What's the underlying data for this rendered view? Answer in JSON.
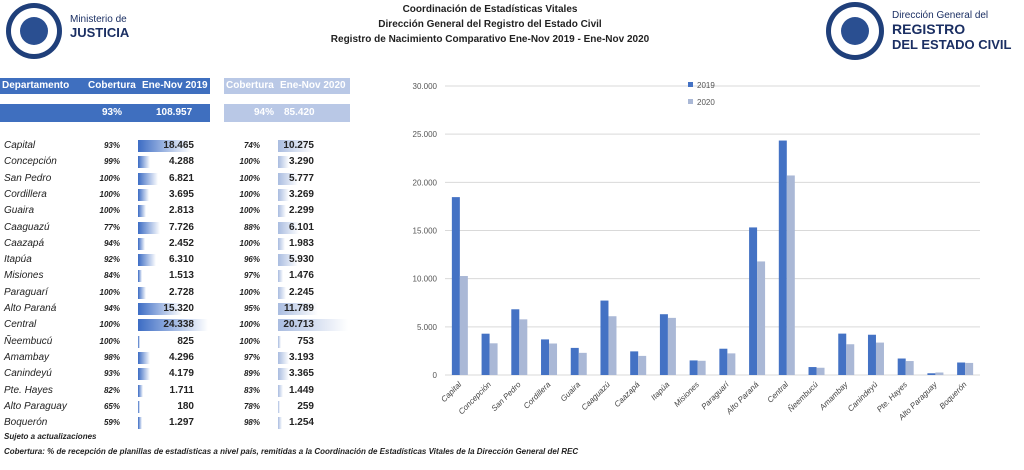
{
  "header": {
    "left_logo_line1": "Ministerio de",
    "left_logo_line2": "JUSTICIA",
    "right_logo_line1": "Dirección General del",
    "right_logo_line2": "REGISTRO",
    "right_logo_line3": "DEL ESTADO CIVIL",
    "title1": "Coordinación de Estadísticas Vitales",
    "title2": "Dirección General del Registro del Estado Civil",
    "title3": "Registro de Nacimiento Comparativo Ene-Nov 2019 - Ene-Nov 2020"
  },
  "table": {
    "col_dept": "Departamento",
    "col_cov": "Cobertura",
    "col_2019": "Ene-Nov 2019",
    "col_cov2": "Cobertura",
    "col_2020": "Ene-Nov 2020",
    "total_cov_2019": "93%",
    "total_2019": "108.957",
    "total_cov_2020": "94%",
    "total_2020": "85.420",
    "rows": [
      {
        "name": "Capital",
        "cov19": "93%",
        "v19": "18.465",
        "cov20": "74%",
        "v20": "10.275"
      },
      {
        "name": "Concepción",
        "cov19": "99%",
        "v19": "4.288",
        "cov20": "100%",
        "v20": "3.290"
      },
      {
        "name": "San Pedro",
        "cov19": "100%",
        "v19": "6.821",
        "cov20": "100%",
        "v20": "5.777"
      },
      {
        "name": "Cordillera",
        "cov19": "100%",
        "v19": "3.695",
        "cov20": "100%",
        "v20": "3.269"
      },
      {
        "name": "Guaira",
        "cov19": "100%",
        "v19": "2.813",
        "cov20": "100%",
        "v20": "2.299"
      },
      {
        "name": "Caaguazú",
        "cov19": "77%",
        "v19": "7.726",
        "cov20": "88%",
        "v20": "6.101"
      },
      {
        "name": "Caazapá",
        "cov19": "94%",
        "v19": "2.452",
        "cov20": "100%",
        "v20": "1.983"
      },
      {
        "name": "Itapúa",
        "cov19": "92%",
        "v19": "6.310",
        "cov20": "96%",
        "v20": "5.930"
      },
      {
        "name": "Misiones",
        "cov19": "84%",
        "v19": "1.513",
        "cov20": "97%",
        "v20": "1.476"
      },
      {
        "name": "Paraguarí",
        "cov19": "100%",
        "v19": "2.728",
        "cov20": "100%",
        "v20": "2.245"
      },
      {
        "name": "Alto Paraná",
        "cov19": "94%",
        "v19": "15.320",
        "cov20": "95%",
        "v20": "11.789"
      },
      {
        "name": "Central",
        "cov19": "100%",
        "v19": "24.338",
        "cov20": "100%",
        "v20": "20.713"
      },
      {
        "name": "Ñeembucú",
        "cov19": "100%",
        "v19": "825",
        "cov20": "100%",
        "v20": "753"
      },
      {
        "name": "Amambay",
        "cov19": "98%",
        "v19": "4.296",
        "cov20": "97%",
        "v20": "3.193"
      },
      {
        "name": "Canindeyú",
        "cov19": "93%",
        "v19": "4.179",
        "cov20": "89%",
        "v20": "3.365"
      },
      {
        "name": "Pte. Hayes",
        "cov19": "82%",
        "v19": "1.711",
        "cov20": "83%",
        "v20": "1.449"
      },
      {
        "name": "Alto Paraguay",
        "cov19": "65%",
        "v19": "180",
        "cov20": "78%",
        "v20": "259"
      },
      {
        "name": "Boquerón",
        "cov19": "59%",
        "v19": "1.297",
        "cov20": "98%",
        "v20": "1.254"
      }
    ]
  },
  "notes": {
    "note1": "Sujeto a actualizaciones",
    "note2": "Cobertura:  % de recepción de planillas de estadísticas a nivel país, remitidas a la Coordinación de Estadísticas Vitales de la Dirección General del REC"
  },
  "colors": {
    "series_2019": "#4472c4",
    "series_2020": "#aab8d6",
    "header_2019": "#3f6fbf",
    "header_2020": "#b9c8e6"
  },
  "chart_data": {
    "type": "bar",
    "categories": [
      "Capital",
      "Concepción",
      "San Pedro",
      "Cordillera",
      "Guaira",
      "Caaguazú",
      "Caazapá",
      "Itapúa",
      "Misiones",
      "Paraguarí",
      "Alto Paraná",
      "Central",
      "Ñeembucú",
      "Amambay",
      "Canindeyú",
      "Pte. Hayes",
      "Alto Paraguay",
      "Boquerón"
    ],
    "series": [
      {
        "name": "2019",
        "values": [
          18465,
          4288,
          6821,
          3695,
          2813,
          7726,
          2452,
          6310,
          1513,
          2728,
          15320,
          24338,
          825,
          4296,
          4179,
          1711,
          180,
          1297
        ]
      },
      {
        "name": "2020",
        "values": [
          10275,
          3290,
          5777,
          3269,
          2299,
          6101,
          1983,
          5930,
          1476,
          2245,
          11789,
          20713,
          753,
          3193,
          3365,
          1449,
          259,
          1254
        ]
      }
    ],
    "yticks": [
      "0",
      "5.000",
      "10.000",
      "15.000",
      "20.000",
      "25.000",
      "30.000"
    ],
    "ylim": [
      0,
      30000
    ],
    "grid": true,
    "legend": "top-left"
  }
}
